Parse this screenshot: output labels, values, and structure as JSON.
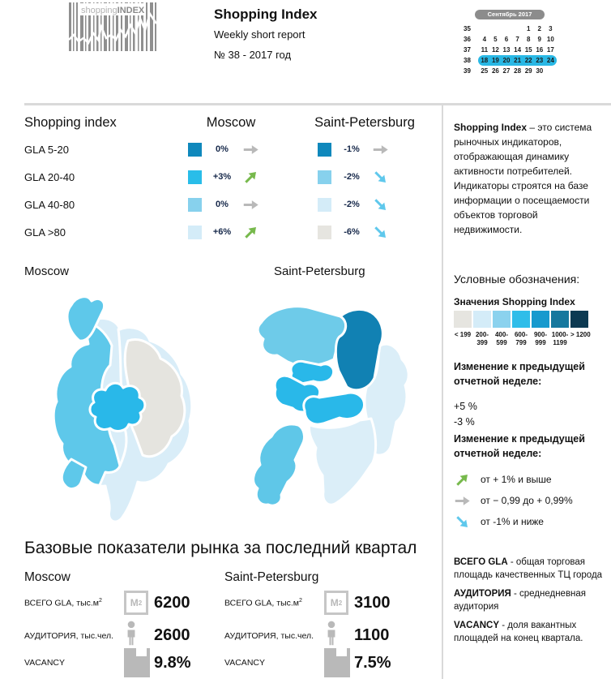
{
  "header": {
    "logo": {
      "word_light": "shopping",
      "word_bold": "INDEX"
    },
    "title": "Shopping Index",
    "subtitle": "Weekly short report",
    "issue": "№ 38 - 2017 год",
    "calendar": {
      "month_label": "Сентябрь 2017",
      "weeks": [
        {
          "num": "35",
          "days": [
            "",
            "",
            "",
            "",
            "1",
            "2",
            "3"
          ],
          "highlight": false
        },
        {
          "num": "36",
          "days": [
            "4",
            "5",
            "6",
            "7",
            "8",
            "9",
            "10"
          ],
          "highlight": false
        },
        {
          "num": "37",
          "days": [
            "11",
            "12",
            "13",
            "14",
            "15",
            "16",
            "17"
          ],
          "highlight": false
        },
        {
          "num": "38",
          "days": [
            "18",
            "19",
            "20",
            "21",
            "22",
            "23",
            "24"
          ],
          "highlight": true
        },
        {
          "num": "39",
          "days": [
            "25",
            "26",
            "27",
            "28",
            "29",
            "30",
            ""
          ],
          "highlight": false
        }
      ]
    }
  },
  "index_table": {
    "header_label": "Shopping index",
    "col_moscow": "Moscow",
    "col_spb": "Saint-Petersburg",
    "rows": [
      {
        "label": "GLA 5-20",
        "moscow": {
          "color": "#0f88bc",
          "value": "0%",
          "trend": "flat"
        },
        "spb": {
          "color": "#0f88bc",
          "value": "-1%",
          "trend": "flat"
        }
      },
      {
        "label": "GLA 20-40",
        "moscow": {
          "color": "#29bde9",
          "value": "+3%",
          "trend": "up"
        },
        "spb": {
          "color": "#87d1ed",
          "value": "-2%",
          "trend": "down"
        }
      },
      {
        "label": "GLA 40-80",
        "moscow": {
          "color": "#87d1ed",
          "value": "0%",
          "trend": "flat"
        },
        "spb": {
          "color": "#d4ecf8",
          "value": "-2%",
          "trend": "down"
        }
      },
      {
        "label": "GLA >80",
        "moscow": {
          "color": "#d4ecf8",
          "value": "+6%",
          "trend": "up"
        },
        "spb": {
          "color": "#e6e5e0",
          "value": "-6%",
          "trend": "down"
        }
      }
    ]
  },
  "maps": {
    "moscow_title": "Moscow",
    "spb_title": "Saint-Petersburg"
  },
  "sidebar": {
    "about": {
      "bold": "Shopping Index",
      "rest": " – это система рыночных индикаторов, отображающая динамику активности потребителей. Индикаторы строятся на базе информации о посещаемости объектов торговой недвижимости."
    },
    "legend_title": "Условные обозначения:",
    "scale_title": "Значения Shopping Index",
    "scale": [
      {
        "color": "#e6e5e0",
        "label": "< 199"
      },
      {
        "color": "#d4ecf8",
        "label": "200-\n399"
      },
      {
        "color": "#8bd2ee",
        "label": "400-\n599"
      },
      {
        "color": "#2fbde9",
        "label": "600-\n799"
      },
      {
        "color": "#189ace",
        "label": "900-\n999"
      },
      {
        "color": "#16789e",
        "label": "1000-\n1199"
      },
      {
        "color": "#0d3a52",
        "label": "> 1200"
      }
    ],
    "change_values": {
      "title": "Изменение к предыдущей отчетной неделе:",
      "values": [
        "+5 %",
        "-3 %"
      ]
    },
    "change_legend": {
      "title": "Изменение к предыдущей отчетной неделе:",
      "items": [
        {
          "trend": "up",
          "label": "от + 1% и выше"
        },
        {
          "trend": "flat",
          "label": "от − 0,99 до + 0,99%"
        },
        {
          "trend": "down",
          "label": "от -1% и ниже"
        }
      ]
    },
    "definitions": [
      {
        "term": "ВСЕГО GLA",
        "text": " - общая торговая площадь качественных ТЦ города"
      },
      {
        "term": "АУДИТОРИЯ",
        "text": " - среднедневная аудитория"
      },
      {
        "term": "VACANCY",
        "text": " - доля вакантных площадей на конец квартала."
      }
    ]
  },
  "base_stats": {
    "title": "Базовые показатели рынка за последний квартал",
    "labels": {
      "gla": "ВСЕГО GLA, тыс.м",
      "gla_sup": "2",
      "audience": "АУДИТОРИЯ, тыс.чел.",
      "vacancy": "VACANCY"
    },
    "m2_icon": {
      "letter": "М",
      "sup": "2"
    },
    "cities": [
      {
        "name": "Moscow",
        "gla": "6200",
        "audience": "2600",
        "vacancy": "9.8%"
      },
      {
        "name": "Saint-Petersburg",
        "gla": "3100",
        "audience": "1100",
        "vacancy": "7.5%"
      }
    ]
  },
  "palette": {
    "accent_cyan": "#29bde9",
    "dark_blue": "#0f88bc",
    "map_dark_blue": "#1181b3",
    "map_medium_blue": "#5ec8ea",
    "map_light_blue": "#d9edf8",
    "map_gray": "#e5e4df",
    "green_arrow": "#77b94c",
    "gray_arrow": "#b9b9b9",
    "blue_arrow": "#5fc8ec",
    "calendar_highlight": "#29b8e5",
    "divider_gray": "#d9d9d9"
  }
}
